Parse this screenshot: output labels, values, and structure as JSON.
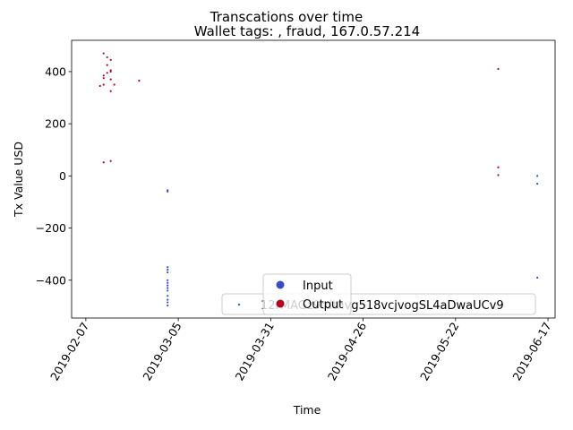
{
  "chart_data": {
    "type": "scatter",
    "title": "Transcations over time",
    "subtitle": "Wallet tags: , fraud, 167.0.57.214",
    "xlabel": "Time",
    "ylabel": "Tx Value USD",
    "xlim": [
      "2019-02-03",
      "2019-06-19"
    ],
    "ylim": [
      -545,
      520
    ],
    "x_ticks": [
      "2019-02-07",
      "2019-03-05",
      "2019-03-31",
      "2019-04-26",
      "2019-05-22",
      "2019-06-17"
    ],
    "y_ticks": [
      -400,
      -200,
      0,
      200,
      400
    ],
    "grid": false,
    "colors": {
      "input": "#3b4cc0",
      "output": "#b40426"
    },
    "series": [
      {
        "name": "Input",
        "color": "#3b4cc0",
        "points": [
          {
            "x": "2019-03-02",
            "y": -55
          },
          {
            "x": "2019-03-02",
            "y": -60
          },
          {
            "x": "2019-03-02",
            "y": -350
          },
          {
            "x": "2019-03-02",
            "y": -360
          },
          {
            "x": "2019-03-02",
            "y": -370
          },
          {
            "x": "2019-03-02",
            "y": -400
          },
          {
            "x": "2019-03-02",
            "y": -410
          },
          {
            "x": "2019-03-02",
            "y": -420
          },
          {
            "x": "2019-03-02",
            "y": -430
          },
          {
            "x": "2019-03-02",
            "y": -440
          },
          {
            "x": "2019-03-02",
            "y": -460
          },
          {
            "x": "2019-03-02",
            "y": -475
          },
          {
            "x": "2019-03-02",
            "y": -485
          },
          {
            "x": "2019-03-02",
            "y": -497
          },
          {
            "x": "2019-06-14",
            "y": 0
          },
          {
            "x": "2019-06-14",
            "y": -30
          },
          {
            "x": "2019-06-14",
            "y": -390
          }
        ]
      },
      {
        "name": "Output",
        "color": "#b40426",
        "points": [
          {
            "x": "2019-02-12",
            "y": 470
          },
          {
            "x": "2019-02-13",
            "y": 455
          },
          {
            "x": "2019-02-14",
            "y": 445
          },
          {
            "x": "2019-02-13",
            "y": 425
          },
          {
            "x": "2019-02-14",
            "y": 405
          },
          {
            "x": "2019-02-14",
            "y": 400
          },
          {
            "x": "2019-02-13",
            "y": 395
          },
          {
            "x": "2019-02-12",
            "y": 385
          },
          {
            "x": "2019-02-12",
            "y": 375
          },
          {
            "x": "2019-02-14",
            "y": 370
          },
          {
            "x": "2019-02-12",
            "y": 350
          },
          {
            "x": "2019-02-11",
            "y": 345
          },
          {
            "x": "2019-02-15",
            "y": 350
          },
          {
            "x": "2019-02-14",
            "y": 325
          },
          {
            "x": "2019-02-22",
            "y": 365
          },
          {
            "x": "2019-02-12",
            "y": 52
          },
          {
            "x": "2019-02-14",
            "y": 57
          },
          {
            "x": "2019-06-03",
            "y": 410
          },
          {
            "x": "2019-06-03",
            "y": 33
          },
          {
            "x": "2019-06-03",
            "y": 3
          }
        ]
      }
    ],
    "legend": {
      "placement": "lower-center",
      "entries": [
        "Input",
        "Output"
      ]
    },
    "legend_secondary": {
      "placement": "lower-right",
      "entries": [
        "12rMAGz9tdtnvg518vcjvogSL4aDwaUCv9"
      ]
    }
  }
}
